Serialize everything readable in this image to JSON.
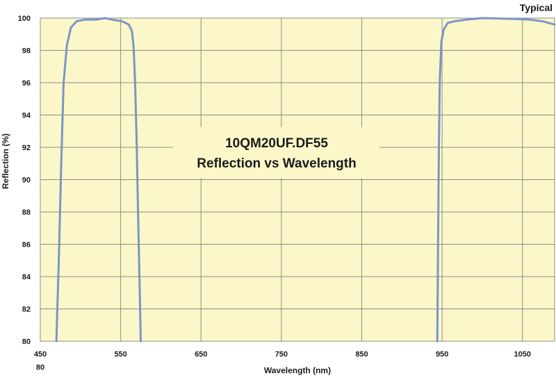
{
  "chart_data": {
    "type": "line",
    "title_line1": "10QM20UF.DF55",
    "title_line2": "Reflection vs Wavelength",
    "badge": "Typical",
    "xlabel": "Wavelength (nm)",
    "ylabel": "Reflection (%)",
    "xlim": [
      450,
      1090
    ],
    "ylim": [
      80,
      100
    ],
    "x_ticks": [
      "450",
      "550",
      "650",
      "750",
      "850",
      "950",
      "1050"
    ],
    "y_ticks": [
      "80",
      "82",
      "84",
      "86",
      "88",
      "90",
      "92",
      "94",
      "96",
      "98",
      "100"
    ],
    "x_corner_label": "80",
    "grid": true,
    "colors": {
      "line": "#7b95c6",
      "plot_bg": "#fbf7c8",
      "grid": "#8c8c8c"
    },
    "series": [
      {
        "segments": [
          [
            [
              470,
              80
            ],
            [
              473,
              85
            ],
            [
              476,
              91
            ],
            [
              479,
              96
            ],
            [
              483,
              98.3
            ],
            [
              488,
              99.4
            ],
            [
              495,
              99.8
            ],
            [
              505,
              99.9
            ],
            [
              520,
              99.9
            ],
            [
              530,
              100
            ],
            [
              540,
              99.9
            ],
            [
              552,
              99.8
            ],
            [
              560,
              99.6
            ],
            [
              564,
              99.2
            ],
            [
              566,
              98.3
            ],
            [
              568,
              96
            ],
            [
              570,
              92
            ],
            [
              572,
              87
            ],
            [
              574,
              82.5
            ],
            [
              575,
              80
            ]
          ],
          [
            [
              944,
              80
            ],
            [
              945,
              86
            ],
            [
              946,
              92
            ],
            [
              947,
              96
            ],
            [
              949,
              98.5
            ],
            [
              952,
              99.3
            ],
            [
              957,
              99.7
            ],
            [
              965,
              99.8
            ],
            [
              980,
              99.9
            ],
            [
              1000,
              100
            ],
            [
              1040,
              99.95
            ],
            [
              1060,
              99.9
            ],
            [
              1075,
              99.8
            ],
            [
              1090,
              99.6
            ]
          ]
        ]
      }
    ]
  }
}
